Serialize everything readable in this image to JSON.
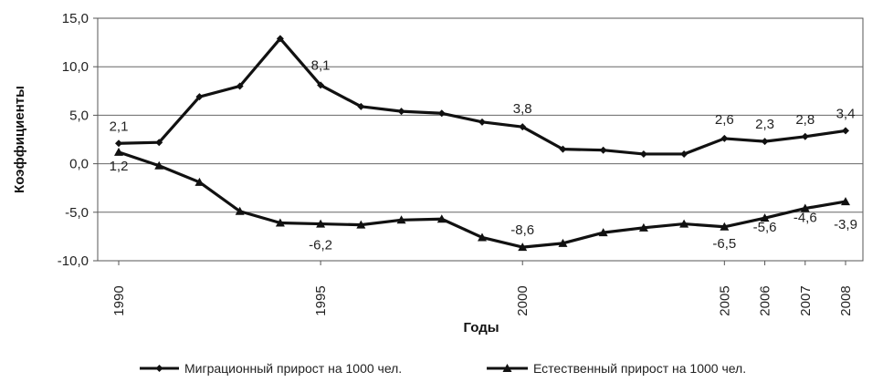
{
  "chart_data": {
    "type": "line",
    "xlabel": "Годы",
    "ylabel": "Коэффициенты",
    "ylim": [
      -10,
      15
    ],
    "y_ticks": [
      "15,0",
      "10,0",
      "5,0",
      "0,0",
      "-5,0",
      "-10,0"
    ],
    "y_tick_values": [
      15,
      10,
      5,
      0,
      -5,
      -10
    ],
    "x_tick_labels": [
      "1990",
      "1995",
      "2000",
      "2005",
      "2006",
      "2007",
      "2008"
    ],
    "x_tick_values": [
      1990,
      1995,
      2000,
      2005,
      2006,
      2007,
      2008
    ],
    "grid": "horizontal",
    "legend_position": "bottom",
    "series": [
      {
        "name": "Миграционный прирост на 1000 чел.",
        "marker": "diamond",
        "x": [
          1990,
          1991,
          1992,
          1993,
          1994,
          1995,
          1996,
          1997,
          1998,
          1999,
          2000,
          2001,
          2002,
          2003,
          2004,
          2005,
          2006,
          2007,
          2008
        ],
        "values": [
          2.1,
          2.2,
          6.9,
          8.0,
          12.9,
          8.1,
          5.9,
          5.4,
          5.2,
          4.3,
          3.8,
          1.5,
          1.4,
          1.0,
          1.0,
          2.6,
          2.3,
          2.8,
          3.4
        ],
        "labels": [
          {
            "x": 1990,
            "text": "2,1"
          },
          {
            "x": 1995,
            "text": "8,1"
          },
          {
            "x": 2000,
            "text": "3,8"
          },
          {
            "x": 2005,
            "text": "2,6"
          },
          {
            "x": 2006,
            "text": "2,3"
          },
          {
            "x": 2007,
            "text": "2,8"
          },
          {
            "x": 2008,
            "text": "3,4"
          }
        ]
      },
      {
        "name": "Естественный прирост на 1000 чел.",
        "marker": "triangle",
        "x": [
          1990,
          1991,
          1992,
          1993,
          1994,
          1995,
          1996,
          1997,
          1998,
          1999,
          2000,
          2001,
          2002,
          2003,
          2004,
          2005,
          2006,
          2007,
          2008
        ],
        "values": [
          1.2,
          -0.2,
          -1.9,
          -4.9,
          -6.1,
          -6.2,
          -6.3,
          -5.8,
          -5.7,
          -7.6,
          -8.6,
          -8.2,
          -7.1,
          -6.6,
          -6.2,
          -6.5,
          -5.6,
          -4.6,
          -3.9
        ],
        "labels": [
          {
            "x": 1990,
            "text": "1,2"
          },
          {
            "x": 1995,
            "text": "-6,2"
          },
          {
            "x": 2000,
            "text": "-8,6"
          },
          {
            "x": 2005,
            "text": "-6,5"
          },
          {
            "x": 2006,
            "text": "-5,6"
          },
          {
            "x": 2007,
            "text": "-4,6"
          },
          {
            "x": 2008,
            "text": "-3,9"
          }
        ]
      }
    ]
  }
}
